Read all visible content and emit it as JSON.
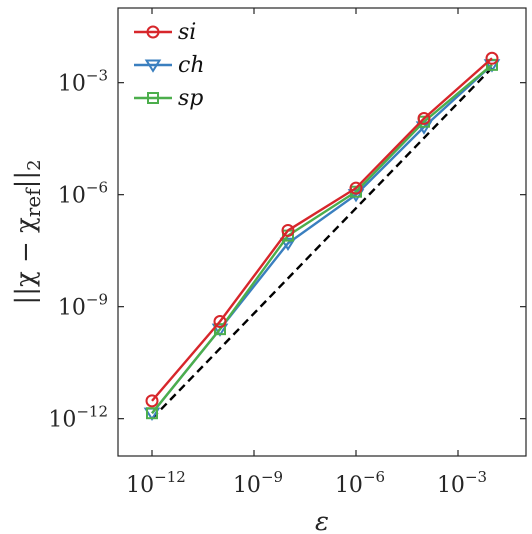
{
  "chart_data": {
    "type": "line",
    "title": "",
    "xlabel": "ε",
    "ylabel_parts": {
      "main": "||χ − χ",
      "sub": "ref",
      "post": "||",
      "subscript": "2"
    },
    "x_scale": "log",
    "y_scale": "log",
    "xlim": [
      1e-13,
      0.1
    ],
    "ylim": [
      1e-13,
      0.1
    ],
    "x_ticks": [
      1e-12,
      1e-09,
      1e-06,
      0.001
    ],
    "x_tick_labels": [
      {
        "base": "10",
        "exp": "−12"
      },
      {
        "base": "10",
        "exp": "−9"
      },
      {
        "base": "10",
        "exp": "−6"
      },
      {
        "base": "10",
        "exp": "−3"
      }
    ],
    "y_ticks": [
      1e-12,
      1e-09,
      1e-06,
      0.001
    ],
    "y_tick_labels": [
      {
        "base": "10",
        "exp": "−12"
      },
      {
        "base": "10",
        "exp": "−9"
      },
      {
        "base": "10",
        "exp": "−6"
      },
      {
        "base": "10",
        "exp": "−3"
      }
    ],
    "grid": false,
    "legend_position": "top-left",
    "x": [
      1e-12,
      1e-10,
      1e-08,
      1e-06,
      0.0001,
      0.01
    ],
    "series": [
      {
        "name": "si",
        "marker": "circle",
        "color": "#d7262b",
        "values": [
          3e-12,
          4e-10,
          1.1e-07,
          1.5e-06,
          0.00011,
          0.0045
        ]
      },
      {
        "name": "ch",
        "marker": "triangle-down",
        "color": "#3a7fbf",
        "values": [
          1.4e-12,
          2.5e-10,
          5e-08,
          1e-06,
          6.5e-05,
          0.003
        ]
      },
      {
        "name": "sp",
        "marker": "square",
        "color": "#4cae4c",
        "values": [
          1.4e-12,
          2.5e-10,
          8e-08,
          1.2e-06,
          9e-05,
          0.003
        ]
      }
    ],
    "reference_line": {
      "style": "dashed",
      "color": "#000000",
      "x": [
        1e-12,
        0.01
      ],
      "y": [
        1e-12,
        0.0025
      ]
    }
  }
}
